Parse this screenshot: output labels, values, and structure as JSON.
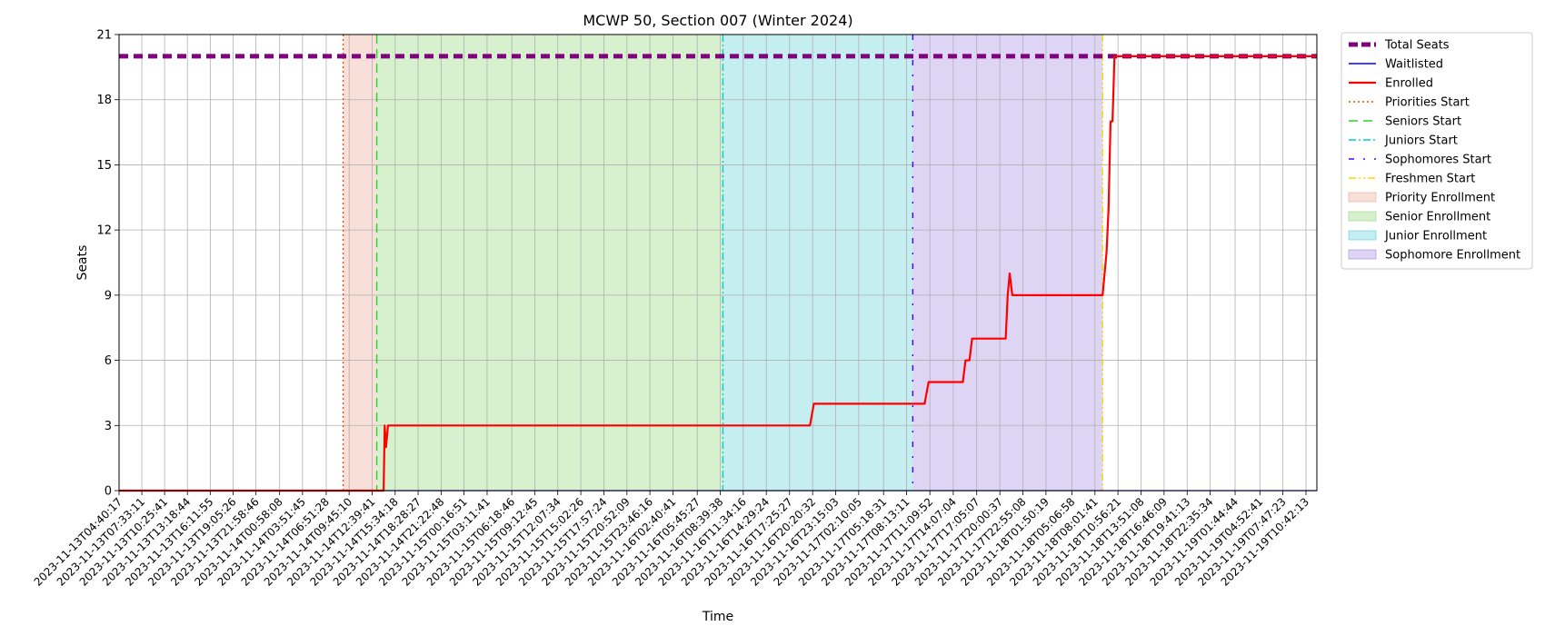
{
  "chart_data": {
    "type": "line",
    "title": "MCWP 50, Section 007 (Winter 2024)",
    "xlabel": "Time",
    "ylabel": "Seats",
    "ylim": [
      0,
      21
    ],
    "yticks": [
      0,
      3,
      6,
      9,
      12,
      15,
      18,
      21
    ],
    "grid": true,
    "legend_position": "outside-right",
    "x_tick_labels": [
      "2023-11-13T04:40:17",
      "2023-11-13T07:33:11",
      "2023-11-13T10:25:41",
      "2023-11-13T13:18:44",
      "2023-11-13T16:11:55",
      "2023-11-13T19:05:26",
      "2023-11-13T21:58:46",
      "2023-11-14T00:58:08",
      "2023-11-14T03:51:45",
      "2023-11-14T06:51:28",
      "2023-11-14T09:45:10",
      "2023-11-14T12:39:41",
      "2023-11-14T15:34:18",
      "2023-11-14T18:28:27",
      "2023-11-14T21:22:48",
      "2023-11-15T00:16:51",
      "2023-11-15T03:11:41",
      "2023-11-15T06:18:46",
      "2023-11-15T09:12:45",
      "2023-11-15T12:07:34",
      "2023-11-15T15:02:26",
      "2023-11-15T17:57:24",
      "2023-11-15T20:52:09",
      "2023-11-15T23:46:16",
      "2023-11-16T02:40:41",
      "2023-11-16T05:45:27",
      "2023-11-16T08:39:38",
      "2023-11-16T11:34:16",
      "2023-11-16T14:29:24",
      "2023-11-16T17:25:27",
      "2023-11-16T20:20:32",
      "2023-11-16T23:15:03",
      "2023-11-17T02:10:05",
      "2023-11-17T05:18:31",
      "2023-11-17T08:13:11",
      "2023-11-17T11:09:52",
      "2023-11-17T14:07:04",
      "2023-11-17T17:05:07",
      "2023-11-17T20:00:37",
      "2023-11-17T22:55:08",
      "2023-11-18T01:50:19",
      "2023-11-18T05:06:58",
      "2023-11-18T08:01:41",
      "2023-11-18T10:56:21",
      "2023-11-18T13:51:08",
      "2023-11-18T16:46:09",
      "2023-11-18T19:41:13",
      "2023-11-18T22:35:34",
      "2023-11-19T01:44:44",
      "2023-11-19T04:52:41",
      "2023-11-19T07:47:23",
      "2023-11-19T10:42:13"
    ],
    "x_range": [
      "2023-11-13T04:40:17",
      "2023-11-19T12:05:00"
    ],
    "series": [
      {
        "name": "Total Seats",
        "color": "#800080",
        "style": "dashed",
        "width": 5,
        "points": [
          [
            "2023-11-13T04:40:17",
            20
          ],
          [
            "2023-11-19T12:05:00",
            20
          ]
        ]
      },
      {
        "name": "Waitlisted",
        "color": "#0000ff",
        "style": "solid",
        "width": 1.3,
        "points": [
          [
            "2023-11-13T04:40:17",
            0
          ],
          [
            "2023-11-19T12:05:00",
            0
          ]
        ]
      },
      {
        "name": "Enrolled",
        "color": "#ff0000",
        "style": "solid",
        "width": 2.2,
        "points": [
          [
            "2023-11-13T04:40:17",
            0
          ],
          [
            "2023-11-14T14:07:00",
            0
          ],
          [
            "2023-11-14T14:15:00",
            3
          ],
          [
            "2023-11-14T14:25:00",
            2
          ],
          [
            "2023-11-14T14:40:00",
            3
          ],
          [
            "2023-11-16T20:00:00",
            3
          ],
          [
            "2023-11-16T20:30:00",
            4
          ],
          [
            "2023-11-17T10:30:00",
            4
          ],
          [
            "2023-11-17T11:00:00",
            5
          ],
          [
            "2023-11-17T15:20:00",
            5
          ],
          [
            "2023-11-17T15:40:00",
            6
          ],
          [
            "2023-11-17T16:10:00",
            6
          ],
          [
            "2023-11-17T16:30:00",
            7
          ],
          [
            "2023-11-17T20:45:00",
            7
          ],
          [
            "2023-11-17T21:00:00",
            9
          ],
          [
            "2023-11-17T21:15:00",
            10
          ],
          [
            "2023-11-17T21:35:00",
            9
          ],
          [
            "2023-11-18T09:00:00",
            9
          ],
          [
            "2023-11-18T09:30:00",
            11
          ],
          [
            "2023-11-18T09:45:00",
            13
          ],
          [
            "2023-11-18T10:00:00",
            17
          ],
          [
            "2023-11-18T10:15:00",
            17
          ],
          [
            "2023-11-18T10:30:00",
            20
          ],
          [
            "2023-11-18T10:45:00",
            20
          ],
          [
            "2023-11-18T10:56:00",
            20
          ],
          [
            "2023-11-19T12:05:00",
            20
          ]
        ]
      }
    ],
    "vertical_lines": [
      {
        "name": "Priorities Start",
        "time": "2023-11-14T09:00:00",
        "color": "#ff4500",
        "style": "dotted"
      },
      {
        "name": "Seniors Start",
        "time": "2023-11-14T13:15:00",
        "color": "#32cd32",
        "style": "dashed"
      },
      {
        "name": "Juniors Start",
        "time": "2023-11-16T09:00:00",
        "color": "#00ced1",
        "style": "dashdot"
      },
      {
        "name": "Sophomores Start",
        "time": "2023-11-17T09:00:00",
        "color": "#4b00ff",
        "style": "loose-dashdot"
      },
      {
        "name": "Freshmen Start",
        "time": "2023-11-18T09:00:00",
        "color": "#ffd700",
        "style": "dashdotdot"
      }
    ],
    "shaded_regions": [
      {
        "name": "Priority Enrollment",
        "start": "2023-11-14T09:00:00",
        "end": "2023-11-14T13:15:00",
        "color": "#e9967a"
      },
      {
        "name": "Senior Enrollment",
        "start": "2023-11-14T13:15:00",
        "end": "2023-11-16T09:00:00",
        "color": "#7ccd5a"
      },
      {
        "name": "Junior Enrollment",
        "start": "2023-11-16T09:00:00",
        "end": "2023-11-17T09:00:00",
        "color": "#40c8cf"
      },
      {
        "name": "Sophomore Enrollment",
        "start": "2023-11-17T09:00:00",
        "end": "2023-11-18T09:00:00",
        "color": "#9370db"
      }
    ],
    "legend_entries": [
      {
        "label": "Total Seats",
        "kind": "line",
        "color": "#800080",
        "style": "dashed"
      },
      {
        "label": "Waitlisted",
        "kind": "line",
        "color": "#0000ff",
        "style": "solid"
      },
      {
        "label": "Enrolled",
        "kind": "line",
        "color": "#ff0000",
        "style": "solid"
      },
      {
        "label": "Priorities Start",
        "kind": "line",
        "color": "#ff4500",
        "style": "dotted"
      },
      {
        "label": "Seniors Start",
        "kind": "line",
        "color": "#32cd32",
        "style": "dashed"
      },
      {
        "label": "Juniors Start",
        "kind": "line",
        "color": "#00ced1",
        "style": "dashdot"
      },
      {
        "label": "Sophomores Start",
        "kind": "line",
        "color": "#4b00ff",
        "style": "loose-dashdot"
      },
      {
        "label": "Freshmen Start",
        "kind": "line",
        "color": "#ffd700",
        "style": "dashdotdot"
      },
      {
        "label": "Priority Enrollment",
        "kind": "patch",
        "color": "#e9967a"
      },
      {
        "label": "Senior Enrollment",
        "kind": "patch",
        "color": "#7ccd5a"
      },
      {
        "label": "Junior Enrollment",
        "kind": "patch",
        "color": "#40c8cf"
      },
      {
        "label": "Sophomore Enrollment",
        "kind": "patch",
        "color": "#9370db"
      }
    ]
  }
}
